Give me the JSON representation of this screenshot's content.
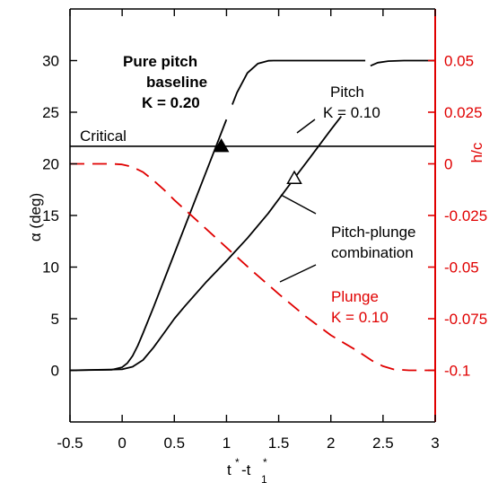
{
  "chart_data": {
    "type": "line",
    "xlabel": "t*-t*1",
    "xlabel_parts": {
      "t1": "t",
      "sup1": "*",
      "dash": "-t",
      "sub": "1",
      "sup2": "*"
    },
    "ylabel": "α (deg)",
    "ylabel_right": "h/c",
    "xlim": [
      -0.5,
      3.0
    ],
    "ylim": [
      -5,
      35
    ],
    "ylim_right": [
      -0.125,
      0.075
    ],
    "x_ticks": [
      -0.5,
      0,
      0.5,
      1,
      1.5,
      2,
      2.5,
      3
    ],
    "x_tick_labels": [
      "-0.5",
      "0",
      "0.5",
      "1",
      "1.5",
      "2",
      "2.5",
      "3"
    ],
    "y_ticks": [
      0,
      5,
      10,
      15,
      20,
      25,
      30
    ],
    "y_tick_labels": [
      "0",
      "5",
      "10",
      "15",
      "20",
      "25",
      "30"
    ],
    "y_ticks_right": [
      -0.1,
      -0.075,
      -0.05,
      -0.025,
      0,
      0.025,
      0.05
    ],
    "y_tick_labels_right": [
      "-0.1",
      "-0.075",
      "-0.05",
      "-0.025",
      "0",
      "0.025",
      "0.05"
    ],
    "critical_value": 21.7,
    "colors": {
      "right_axis": "#e00000",
      "plunge": "#e00000",
      "lines": "#000000"
    },
    "series": [
      {
        "axis": "left",
        "style": "solid",
        "x": [
          -0.5,
          -0.1,
          0,
          0.05,
          0.1,
          0.15,
          0.2,
          0.3,
          0.5,
          0.7,
          0.9,
          1.0,
          1.1,
          1.2,
          1.3,
          1.4,
          1.45,
          1.5,
          1.6,
          1.8,
          2.0,
          2.33
        ],
        "y": [
          0,
          0.05,
          0.3,
          0.7,
          1.4,
          2.4,
          3.6,
          6.1,
          11.3,
          16.5,
          21.7,
          24.3,
          26.9,
          28.8,
          29.7,
          29.98,
          30,
          30,
          30,
          30,
          30,
          30
        ]
      },
      {
        "axis": "left",
        "style": "solid",
        "x": [
          2.38,
          2.45,
          2.55,
          2.7,
          2.85,
          3.0
        ],
        "y": [
          29.5,
          29.8,
          29.95,
          30,
          30,
          30
        ]
      },
      {
        "axis": "left",
        "style": "solid",
        "x": [
          -0.5,
          0,
          0.1,
          0.2,
          0.3,
          0.4,
          0.5,
          0.6,
          0.8,
          1.0,
          1.2,
          1.4,
          1.65,
          1.8,
          2.0,
          2.1
        ],
        "y": [
          0,
          0.1,
          0.35,
          1.0,
          2.2,
          3.6,
          5.0,
          6.2,
          8.5,
          10.6,
          12.8,
          15.2,
          18.6,
          20.6,
          23.3,
          24.6
        ]
      },
      {
        "axis": "right",
        "style": "dashed",
        "x": [
          -0.5,
          -0.1,
          0,
          0.1,
          0.2,
          0.3,
          0.4,
          0.5,
          0.75,
          1.0,
          1.25,
          1.5,
          1.75,
          2.0,
          2.25,
          2.4,
          2.5,
          2.6,
          2.75,
          3.0
        ],
        "y": [
          0,
          0,
          -0.0003,
          -0.0015,
          -0.004,
          -0.008,
          -0.0125,
          -0.0175,
          -0.029,
          -0.0405,
          -0.052,
          -0.063,
          -0.0735,
          -0.083,
          -0.0905,
          -0.0955,
          -0.098,
          -0.0995,
          -0.1,
          -0.1
        ]
      }
    ],
    "markers": [
      {
        "type": "triangle",
        "filled": true,
        "x": 0.95,
        "y": 21.7
      },
      {
        "type": "triangle",
        "filled": false,
        "x": 1.65,
        "y": 18.6
      }
    ],
    "annotations": {
      "critical": "Critical",
      "baseline_l1": "Pure pitch",
      "baseline_l2": "baseline",
      "baseline_l3": "K = 0.20",
      "pitch_l1": "Pitch",
      "pitch_l2": "K = 0.10",
      "combo_l1": "Pitch-plunge",
      "combo_l2": "combination",
      "plunge_l1": "Plunge",
      "plunge_l2": "K = 0.10"
    }
  }
}
